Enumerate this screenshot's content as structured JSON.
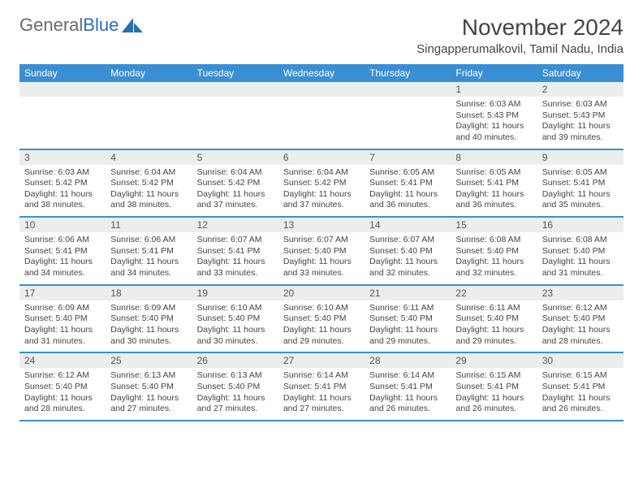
{
  "brand": {
    "part1": "General",
    "part2": "Blue"
  },
  "title": "November 2024",
  "location": "Singapperumalkovil, Tamil Nadu, India",
  "weekdays": [
    "Sunday",
    "Monday",
    "Tuesday",
    "Wednesday",
    "Thursday",
    "Friday",
    "Saturday"
  ],
  "colors": {
    "header_bg": "#3a8fd4",
    "daynum_bg": "#eceded",
    "border": "#3a8fd4",
    "text": "#444"
  },
  "layout": {
    "columns": 7,
    "cell_min_height": 80
  },
  "weeks": [
    [
      {
        "day": "",
        "sunrise": "",
        "sunset": "",
        "daylight": ""
      },
      {
        "day": "",
        "sunrise": "",
        "sunset": "",
        "daylight": ""
      },
      {
        "day": "",
        "sunrise": "",
        "sunset": "",
        "daylight": ""
      },
      {
        "day": "",
        "sunrise": "",
        "sunset": "",
        "daylight": ""
      },
      {
        "day": "",
        "sunrise": "",
        "sunset": "",
        "daylight": ""
      },
      {
        "day": "1",
        "sunrise": "Sunrise: 6:03 AM",
        "sunset": "Sunset: 5:43 PM",
        "daylight": "Daylight: 11 hours and 40 minutes."
      },
      {
        "day": "2",
        "sunrise": "Sunrise: 6:03 AM",
        "sunset": "Sunset: 5:43 PM",
        "daylight": "Daylight: 11 hours and 39 minutes."
      }
    ],
    [
      {
        "day": "3",
        "sunrise": "Sunrise: 6:03 AM",
        "sunset": "Sunset: 5:42 PM",
        "daylight": "Daylight: 11 hours and 38 minutes."
      },
      {
        "day": "4",
        "sunrise": "Sunrise: 6:04 AM",
        "sunset": "Sunset: 5:42 PM",
        "daylight": "Daylight: 11 hours and 38 minutes."
      },
      {
        "day": "5",
        "sunrise": "Sunrise: 6:04 AM",
        "sunset": "Sunset: 5:42 PM",
        "daylight": "Daylight: 11 hours and 37 minutes."
      },
      {
        "day": "6",
        "sunrise": "Sunrise: 6:04 AM",
        "sunset": "Sunset: 5:42 PM",
        "daylight": "Daylight: 11 hours and 37 minutes."
      },
      {
        "day": "7",
        "sunrise": "Sunrise: 6:05 AM",
        "sunset": "Sunset: 5:41 PM",
        "daylight": "Daylight: 11 hours and 36 minutes."
      },
      {
        "day": "8",
        "sunrise": "Sunrise: 6:05 AM",
        "sunset": "Sunset: 5:41 PM",
        "daylight": "Daylight: 11 hours and 36 minutes."
      },
      {
        "day": "9",
        "sunrise": "Sunrise: 6:05 AM",
        "sunset": "Sunset: 5:41 PM",
        "daylight": "Daylight: 11 hours and 35 minutes."
      }
    ],
    [
      {
        "day": "10",
        "sunrise": "Sunrise: 6:06 AM",
        "sunset": "Sunset: 5:41 PM",
        "daylight": "Daylight: 11 hours and 34 minutes."
      },
      {
        "day": "11",
        "sunrise": "Sunrise: 6:06 AM",
        "sunset": "Sunset: 5:41 PM",
        "daylight": "Daylight: 11 hours and 34 minutes."
      },
      {
        "day": "12",
        "sunrise": "Sunrise: 6:07 AM",
        "sunset": "Sunset: 5:41 PM",
        "daylight": "Daylight: 11 hours and 33 minutes."
      },
      {
        "day": "13",
        "sunrise": "Sunrise: 6:07 AM",
        "sunset": "Sunset: 5:40 PM",
        "daylight": "Daylight: 11 hours and 33 minutes."
      },
      {
        "day": "14",
        "sunrise": "Sunrise: 6:07 AM",
        "sunset": "Sunset: 5:40 PM",
        "daylight": "Daylight: 11 hours and 32 minutes."
      },
      {
        "day": "15",
        "sunrise": "Sunrise: 6:08 AM",
        "sunset": "Sunset: 5:40 PM",
        "daylight": "Daylight: 11 hours and 32 minutes."
      },
      {
        "day": "16",
        "sunrise": "Sunrise: 6:08 AM",
        "sunset": "Sunset: 5:40 PM",
        "daylight": "Daylight: 11 hours and 31 minutes."
      }
    ],
    [
      {
        "day": "17",
        "sunrise": "Sunrise: 6:09 AM",
        "sunset": "Sunset: 5:40 PM",
        "daylight": "Daylight: 11 hours and 31 minutes."
      },
      {
        "day": "18",
        "sunrise": "Sunrise: 6:09 AM",
        "sunset": "Sunset: 5:40 PM",
        "daylight": "Daylight: 11 hours and 30 minutes."
      },
      {
        "day": "19",
        "sunrise": "Sunrise: 6:10 AM",
        "sunset": "Sunset: 5:40 PM",
        "daylight": "Daylight: 11 hours and 30 minutes."
      },
      {
        "day": "20",
        "sunrise": "Sunrise: 6:10 AM",
        "sunset": "Sunset: 5:40 PM",
        "daylight": "Daylight: 11 hours and 29 minutes."
      },
      {
        "day": "21",
        "sunrise": "Sunrise: 6:11 AM",
        "sunset": "Sunset: 5:40 PM",
        "daylight": "Daylight: 11 hours and 29 minutes."
      },
      {
        "day": "22",
        "sunrise": "Sunrise: 6:11 AM",
        "sunset": "Sunset: 5:40 PM",
        "daylight": "Daylight: 11 hours and 29 minutes."
      },
      {
        "day": "23",
        "sunrise": "Sunrise: 6:12 AM",
        "sunset": "Sunset: 5:40 PM",
        "daylight": "Daylight: 11 hours and 28 minutes."
      }
    ],
    [
      {
        "day": "24",
        "sunrise": "Sunrise: 6:12 AM",
        "sunset": "Sunset: 5:40 PM",
        "daylight": "Daylight: 11 hours and 28 minutes."
      },
      {
        "day": "25",
        "sunrise": "Sunrise: 6:13 AM",
        "sunset": "Sunset: 5:40 PM",
        "daylight": "Daylight: 11 hours and 27 minutes."
      },
      {
        "day": "26",
        "sunrise": "Sunrise: 6:13 AM",
        "sunset": "Sunset: 5:40 PM",
        "daylight": "Daylight: 11 hours and 27 minutes."
      },
      {
        "day": "27",
        "sunrise": "Sunrise: 6:14 AM",
        "sunset": "Sunset: 5:41 PM",
        "daylight": "Daylight: 11 hours and 27 minutes."
      },
      {
        "day": "28",
        "sunrise": "Sunrise: 6:14 AM",
        "sunset": "Sunset: 5:41 PM",
        "daylight": "Daylight: 11 hours and 26 minutes."
      },
      {
        "day": "29",
        "sunrise": "Sunrise: 6:15 AM",
        "sunset": "Sunset: 5:41 PM",
        "daylight": "Daylight: 11 hours and 26 minutes."
      },
      {
        "day": "30",
        "sunrise": "Sunrise: 6:15 AM",
        "sunset": "Sunset: 5:41 PM",
        "daylight": "Daylight: 11 hours and 26 minutes."
      }
    ]
  ]
}
